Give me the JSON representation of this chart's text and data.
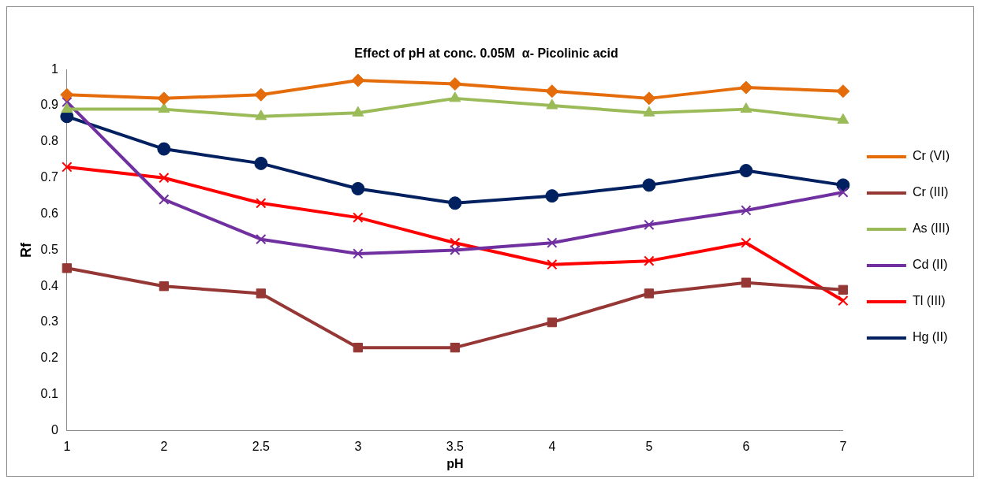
{
  "chart_data": {
    "type": "line",
    "title": "Effect of pH at conc. 0.05M  α- Picolinic acid",
    "xlabel": "pH",
    "ylabel": "Rf",
    "categories": [
      "1",
      "2",
      "2.5",
      "3",
      "3.5",
      "4",
      "5",
      "6",
      "7"
    ],
    "ylim": [
      0,
      1
    ],
    "yticks": [
      0,
      0.1,
      0.2,
      0.3,
      0.4,
      0.5,
      0.6,
      0.7,
      0.8,
      0.9,
      1
    ],
    "grid": false,
    "legend": "right",
    "series": [
      {
        "name": "Cr (VI)",
        "color": "#e46c0a",
        "marker": "diamond",
        "values": [
          0.93,
          0.92,
          0.93,
          0.97,
          0.96,
          0.94,
          0.92,
          0.95,
          0.94
        ]
      },
      {
        "name": "Cr (III)",
        "color": "#953735",
        "marker": "square",
        "values": [
          0.45,
          0.4,
          0.38,
          0.23,
          0.23,
          0.3,
          0.38,
          0.41,
          0.39
        ]
      },
      {
        "name": "As (III)",
        "color": "#9bbb59",
        "marker": "triangle",
        "values": [
          0.89,
          0.89,
          0.87,
          0.88,
          0.92,
          0.9,
          0.88,
          0.89,
          0.86
        ]
      },
      {
        "name": "Cd (II)",
        "color": "#7030a0",
        "marker": "cross",
        "values": [
          0.91,
          0.64,
          0.53,
          0.49,
          0.5,
          0.52,
          0.57,
          0.61,
          0.66
        ]
      },
      {
        "name": "Tl (III)",
        "color": "#ff0000",
        "marker": "cross",
        "values": [
          0.73,
          0.7,
          0.63,
          0.59,
          0.52,
          0.46,
          0.47,
          0.52,
          0.36
        ]
      },
      {
        "name": "Hg (II)",
        "color": "#002060",
        "marker": "circle",
        "values": [
          0.87,
          0.78,
          0.74,
          0.67,
          0.63,
          0.65,
          0.68,
          0.72,
          0.68
        ]
      }
    ]
  }
}
